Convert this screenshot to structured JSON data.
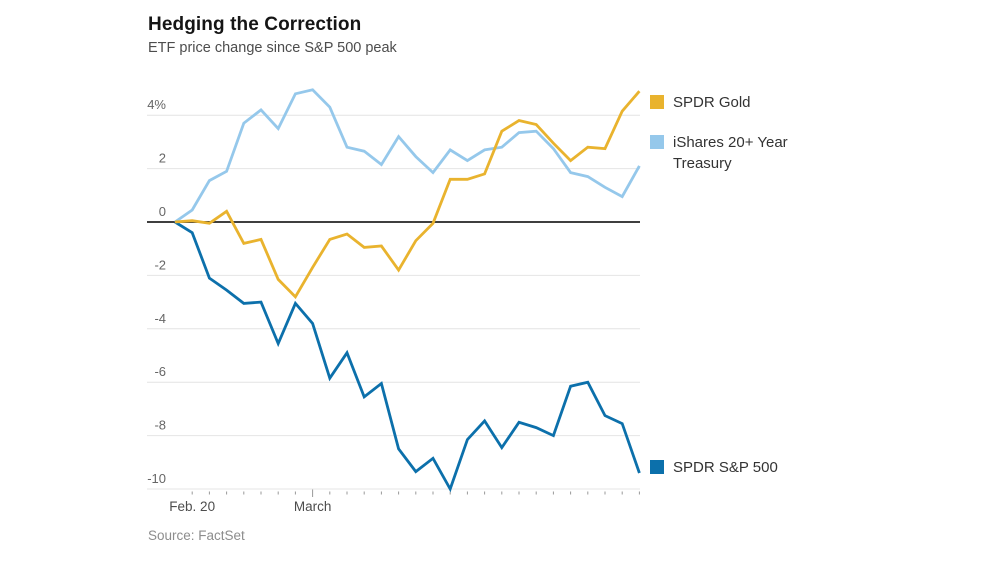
{
  "chart": {
    "title": "Hedging the Correction",
    "subtitle": "ETF price change since S&P 500 peak",
    "source": "Source: FactSet"
  },
  "legend": {
    "gold": "SPDR Gold",
    "treasury": "iShares 20+ Year\nTreasury",
    "sp500": "SPDR S&P 500"
  },
  "colors": {
    "gold": "#e9b32e",
    "light_blue": "#95c8eb",
    "dark_blue": "#0c70ab",
    "gridline": "#e4e4e4",
    "zero_line": "#3f3f3f",
    "tick": "#999999",
    "axis_label": "#666666",
    "x_label": "#4d4d4d"
  },
  "chart_data": {
    "type": "line",
    "title": "Hedging the Correction",
    "subtitle": "ETF price change since S&P 500 peak",
    "source": "Source: FactSet",
    "unit": "percent change since S&P 500 peak",
    "grid": "horizontal gridlines only, dark zero line",
    "legend_position": "right",
    "x_axis": {
      "num_points": 28,
      "start_label": "Feb. 20",
      "tick_labels": [
        {
          "label": "Feb. 20",
          "index": 1
        },
        {
          "label": "March",
          "index": 8
        }
      ]
    },
    "y_axis": {
      "range": [
        -10.6,
        5.4
      ],
      "ticks": [
        {
          "value": 4,
          "label": "4%"
        },
        {
          "value": 2,
          "label": "2"
        },
        {
          "value": 0,
          "label": "0"
        },
        {
          "value": -2,
          "label": "-2"
        },
        {
          "value": -4,
          "label": "-4"
        },
        {
          "value": -6,
          "label": "-6"
        },
        {
          "value": -8,
          "label": "-8"
        },
        {
          "value": -10,
          "label": "-10"
        }
      ]
    },
    "series": [
      {
        "name": "iShares 20+ Year Treasury",
        "color": "#95c8eb",
        "values": [
          0,
          0.45,
          1.55,
          1.9,
          3.7,
          4.2,
          3.5,
          4.8,
          4.95,
          4.3,
          2.8,
          2.65,
          2.15,
          3.2,
          2.45,
          1.85,
          2.7,
          2.3,
          2.7,
          2.8,
          3.35,
          3.4,
          2.75,
          1.85,
          1.7,
          1.3,
          0.95,
          2.1
        ]
      },
      {
        "name": "SPDR S&P 500",
        "color": "#0c70ab",
        "values": [
          0,
          -0.4,
          -2.1,
          -2.55,
          -3.05,
          -3.0,
          -4.55,
          -3.05,
          -3.8,
          -5.85,
          -4.9,
          -6.55,
          -6.05,
          -8.5,
          -9.35,
          -8.85,
          -10.0,
          -8.15,
          -7.45,
          -8.45,
          -7.5,
          -7.7,
          -8.0,
          -6.15,
          -6.0,
          -7.25,
          -7.55,
          -9.4
        ]
      },
      {
        "name": "SPDR Gold",
        "color": "#e9b32e",
        "values": [
          0,
          0.05,
          -0.05,
          0.4,
          -0.8,
          -0.65,
          -2.15,
          -2.8,
          -1.7,
          -0.65,
          -0.45,
          -0.95,
          -0.9,
          -1.8,
          -0.7,
          -0.05,
          1.6,
          1.6,
          1.8,
          3.4,
          3.8,
          3.65,
          2.95,
          2.3,
          2.8,
          2.75,
          4.15,
          4.9
        ]
      }
    ]
  }
}
